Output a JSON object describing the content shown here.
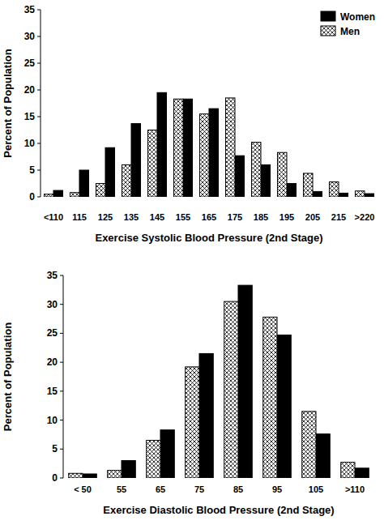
{
  "chart_data": [
    {
      "type": "bar",
      "xlabel": "Exercise Systolic Blood Pressure (2nd Stage)",
      "ylabel": "Percent of Population",
      "categories": [
        "<110",
        "115",
        "125",
        "135",
        "145",
        "155",
        "165",
        "175",
        "185",
        "195",
        "205",
        "215",
        ">220"
      ],
      "series": [
        {
          "name": "Women",
          "color": "#000000",
          "values": [
            1.2,
            5,
            9.2,
            13.7,
            19.5,
            18.3,
            16.5,
            7.7,
            6,
            2.5,
            1,
            0.7,
            0.6
          ]
        },
        {
          "name": "Men",
          "color": "#ffffff",
          "values": [
            0.5,
            0.8,
            2.5,
            6,
            12.5,
            18.3,
            15.5,
            18.5,
            10.2,
            8.3,
            4.4,
            2.8,
            1.1
          ]
        }
      ],
      "ylim": [
        0,
        35
      ],
      "yticks": [
        0,
        5,
        10,
        15,
        20,
        25,
        30,
        35
      ],
      "legend": "upper right"
    },
    {
      "type": "bar",
      "xlabel": "Exercise Diastolic Blood Pressure (2nd Stage)",
      "ylabel": "Percent of Population",
      "categories": [
        "< 50",
        "55",
        "65",
        "75",
        "85",
        "95",
        "105",
        ">110"
      ],
      "series": [
        {
          "color": "#000000",
          "values": [
            0.7,
            3,
            8.3,
            21.5,
            33.3,
            24.7,
            7.6,
            1.7
          ]
        },
        {
          "color": "#ffffff",
          "values": [
            0.8,
            1.3,
            6.5,
            19.2,
            30.5,
            27.8,
            11.5,
            2.7
          ]
        }
      ],
      "ylim": [
        0,
        35
      ],
      "yticks": [
        0,
        5,
        10,
        15,
        20,
        25,
        30,
        35
      ]
    }
  ]
}
